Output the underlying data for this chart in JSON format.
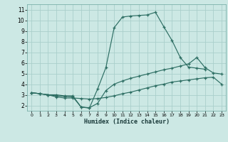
{
  "xlabel": "Humidex (Indice chaleur)",
  "bg_color": "#cce8e4",
  "grid_color": "#aacfcb",
  "line_color": "#2d6e63",
  "xlim": [
    -0.5,
    23.5
  ],
  "ylim": [
    1.5,
    11.5
  ],
  "x_ticks": [
    0,
    1,
    2,
    3,
    4,
    5,
    6,
    7,
    8,
    9,
    10,
    11,
    12,
    13,
    14,
    15,
    16,
    17,
    18,
    19,
    20,
    21,
    22,
    23
  ],
  "y_ticks": [
    2,
    3,
    4,
    5,
    6,
    7,
    8,
    9,
    10,
    11
  ],
  "line_big_x": [
    0,
    1,
    2,
    3,
    4,
    5,
    6,
    7,
    8,
    9,
    10,
    11,
    12,
    13,
    14,
    15,
    16,
    17,
    18,
    19,
    20,
    21
  ],
  "line_big_y": [
    3.2,
    3.1,
    3.0,
    3.0,
    2.9,
    2.9,
    1.85,
    1.75,
    3.55,
    5.55,
    9.3,
    10.3,
    10.4,
    10.45,
    10.5,
    10.75,
    9.4,
    8.1,
    6.5,
    5.6,
    5.5,
    5.4
  ],
  "line_mid_x": [
    0,
    1,
    2,
    3,
    4,
    5,
    6,
    7,
    8,
    9,
    10,
    11,
    12,
    13,
    14,
    15,
    16,
    17,
    18,
    19,
    20,
    21,
    22,
    23
  ],
  "line_mid_y": [
    3.2,
    3.1,
    3.0,
    2.9,
    2.85,
    2.8,
    1.85,
    1.78,
    2.2,
    3.4,
    4.0,
    4.3,
    4.55,
    4.75,
    4.95,
    5.15,
    5.35,
    5.5,
    5.7,
    5.9,
    6.5,
    5.55,
    5.05,
    4.95
  ],
  "line_low_x": [
    0,
    1,
    2,
    3,
    4,
    5,
    6,
    7,
    8,
    9,
    10,
    11,
    12,
    13,
    14,
    15,
    16,
    17,
    18,
    19,
    20,
    21,
    22,
    23
  ],
  "line_low_y": [
    3.2,
    3.1,
    3.0,
    2.8,
    2.7,
    2.7,
    2.65,
    2.6,
    2.65,
    2.75,
    2.9,
    3.1,
    3.25,
    3.45,
    3.65,
    3.85,
    4.0,
    4.2,
    4.3,
    4.4,
    4.5,
    4.6,
    4.65,
    4.0
  ]
}
